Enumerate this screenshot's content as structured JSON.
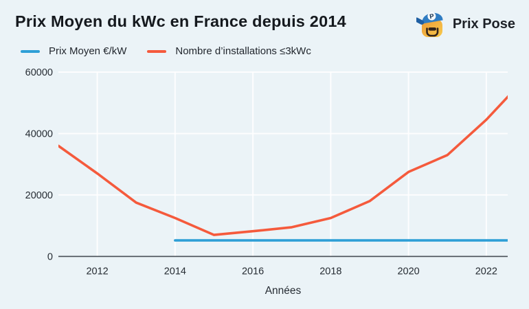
{
  "header": {
    "title": "Prix Moyen du kWc en France depuis 2014",
    "brand": "Prix Pose"
  },
  "legend": {
    "items": [
      {
        "label": "Prix Moyen €/kW",
        "color": "#2E9FD6"
      },
      {
        "label": "Nombre d’installations ≤3kWc",
        "color": "#F55A3C"
      }
    ]
  },
  "chart_data": {
    "type": "line",
    "title": "Prix Moyen du kWc en France depuis 2014",
    "xlabel": "Années",
    "ylabel": "",
    "x_ticks": [
      "2012",
      "2014",
      "2016",
      "2018",
      "2020",
      "2022"
    ],
    "y_ticks": [
      "0",
      "20000",
      "40000",
      "60000"
    ],
    "xlim": [
      2011,
      2022.55
    ],
    "ylim": [
      0,
      60000
    ],
    "grid": true,
    "legend_position": "top-left",
    "series": [
      {
        "name": "Prix Moyen €/kW",
        "color": "#2E9FD6",
        "x": [
          2014,
          2015,
          2016,
          2017,
          2018,
          2019,
          2020,
          2021,
          2022,
          2023
        ],
        "values": [
          5200,
          5200,
          5200,
          5200,
          5200,
          5200,
          5200,
          5200,
          5200,
          5200
        ]
      },
      {
        "name": "Nombre d’installations ≤3kWc",
        "color": "#F55A3C",
        "x": [
          2011,
          2012,
          2013,
          2014,
          2015,
          2016,
          2017,
          2018,
          2019,
          2020,
          2021,
          2022,
          2023
        ],
        "values": [
          36000,
          27000,
          17500,
          12500,
          7000,
          8200,
          9500,
          12500,
          18000,
          27500,
          33000,
          44500,
          58000
        ]
      }
    ],
    "colors": {
      "background": "#EBF3F7",
      "gridline": "#FFFFFF",
      "axis": "#454C54",
      "text": "#262C33"
    }
  }
}
